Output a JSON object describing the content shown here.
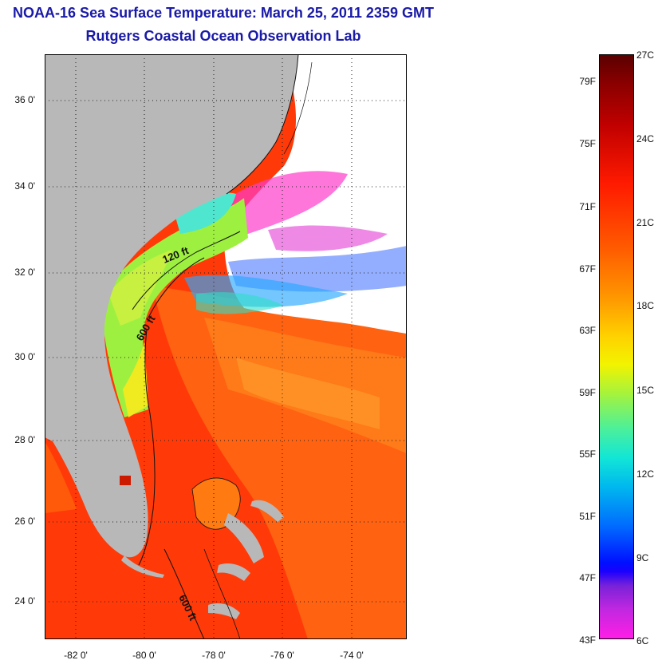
{
  "header": {
    "title": "NOAA-16 Sea Surface Temperature:  March 25, 2011 2359 GMT",
    "subtitle": "Rutgers Coastal Ocean Observation Lab"
  },
  "map": {
    "lat_labels": [
      "36 0'",
      "34 0'",
      "32 0'",
      "30 0'",
      "28 0'",
      "26 0'",
      "24 0'"
    ],
    "lon_labels": [
      "-82 0'",
      "-80 0'",
      "-78 0'",
      "-76 0'",
      "-74 0'"
    ],
    "contours": {
      "c120": "120 ft",
      "c600a": "600 ft",
      "c600b": "600 ft"
    },
    "colors": {
      "land": "#b8b8b8",
      "cloud": "#ffffff",
      "warm_water": "#ff3a08",
      "gulf_stream": "#ff6a10"
    }
  },
  "colorbar": {
    "fahrenheit": [
      "79F",
      "75F",
      "71F",
      "67F",
      "63F",
      "59F",
      "55F",
      "51F",
      "47F",
      "43F"
    ],
    "celsius": [
      "27C",
      "24C",
      "21C",
      "18C",
      "15C",
      "12C",
      "9C",
      "6C"
    ]
  }
}
